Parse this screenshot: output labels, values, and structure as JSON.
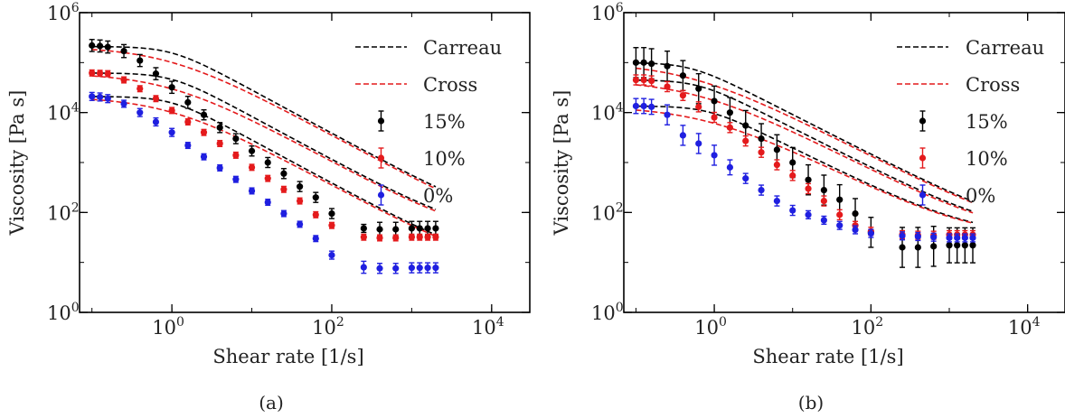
{
  "chart_data": [
    {
      "type": "scatter",
      "panel_label": "(a)",
      "xlabel": "Shear rate [1/s]",
      "ylabel": "Viscosity [Pa s]",
      "xscale": "log",
      "yscale": "log",
      "xlim": [
        0.07,
        30000
      ],
      "ylim": [
        1,
        1000000
      ],
      "xticks": [
        {
          "value": 1,
          "exp": "0"
        },
        {
          "value": 100,
          "exp": "2"
        },
        {
          "value": 10000,
          "exp": "4"
        }
      ],
      "yticks": [
        {
          "value": 1,
          "exp": "0"
        },
        {
          "value": 100,
          "exp": "2"
        },
        {
          "value": 10000,
          "exp": "4"
        },
        {
          "value": 1000000,
          "exp": "6"
        }
      ],
      "tick_base": "10",
      "legend_position": "top-right",
      "legend": [
        {
          "label": "Carreau",
          "kind": "line",
          "color": "#000000"
        },
        {
          "label": "Cross",
          "kind": "line",
          "color": "#e41a1c"
        },
        {
          "label": "15%",
          "kind": "marker",
          "color": "#000000"
        },
        {
          "label": "10%",
          "kind": "marker",
          "color": "#e41a1c"
        },
        {
          "label": "0%",
          "kind": "marker",
          "color": "#1f1fe0"
        }
      ],
      "series": [
        {
          "name": "15%",
          "color": "#000000",
          "x": [
            0.1,
            0.126,
            0.158,
            0.251,
            0.398,
            0.631,
            1,
            1.585,
            2.512,
            3.981,
            6.31,
            10,
            15.85,
            25.12,
            39.81,
            63.1,
            100,
            251.2,
            398.1,
            631,
            1000,
            1259,
            1585,
            1995
          ],
          "y": [
            220000,
            215000,
            205000,
            170000,
            110000,
            60000,
            32000,
            16000,
            9000,
            5000,
            3000,
            1700,
            1000,
            600,
            330,
            200,
            95,
            48,
            46,
            46,
            48,
            48,
            48,
            48
          ],
          "err": [
            0.12,
            0.12,
            0.12,
            0.13,
            0.12,
            0.12,
            0.12,
            0.12,
            0.1,
            0.1,
            0.1,
            0.1,
            0.1,
            0.1,
            0.1,
            0.1,
            0.1,
            0.08,
            0.14,
            0.14,
            0.14,
            0.14,
            0.14,
            0.14
          ]
        },
        {
          "name": "10%",
          "color": "#e41a1c",
          "x": [
            0.1,
            0.126,
            0.158,
            0.251,
            0.398,
            0.631,
            1,
            1.585,
            2.512,
            3.981,
            6.31,
            10,
            15.85,
            25.12,
            39.81,
            63.1,
            100,
            251.2,
            398.1,
            631,
            1000,
            1259,
            1585,
            1995
          ],
          "y": [
            62000,
            61000,
            60000,
            45000,
            30000,
            19000,
            11000,
            6500,
            4000,
            2400,
            1400,
            800,
            480,
            290,
            170,
            90,
            55,
            32,
            31,
            31,
            32,
            32,
            32,
            32
          ],
          "err": [
            0.06,
            0.06,
            0.06,
            0.06,
            0.06,
            0.06,
            0.06,
            0.06,
            0.06,
            0.06,
            0.06,
            0.06,
            0.06,
            0.06,
            0.06,
            0.06,
            0.06,
            0.06,
            0.06,
            0.06,
            0.06,
            0.06,
            0.06,
            0.06
          ]
        },
        {
          "name": "0%",
          "color": "#1f1fe0",
          "x": [
            0.1,
            0.126,
            0.158,
            0.251,
            0.398,
            0.631,
            1,
            1.585,
            2.512,
            3.981,
            6.31,
            10,
            15.85,
            25.12,
            39.81,
            63.1,
            100,
            251.2,
            398.1,
            631,
            1000,
            1259,
            1585,
            1995
          ],
          "y": [
            21000,
            20500,
            19000,
            15000,
            10000,
            6500,
            4000,
            2200,
            1300,
            780,
            460,
            270,
            160,
            95,
            58,
            30,
            14,
            8,
            7.6,
            7.6,
            7.8,
            7.8,
            7.8,
            7.8
          ],
          "err": [
            0.08,
            0.08,
            0.08,
            0.07,
            0.08,
            0.08,
            0.08,
            0.06,
            0.06,
            0.06,
            0.06,
            0.06,
            0.06,
            0.06,
            0.06,
            0.06,
            0.08,
            0.12,
            0.1,
            0.1,
            0.1,
            0.1,
            0.1,
            0.1
          ]
        }
      ],
      "fits": [
        {
          "model": "Carreau",
          "series": "15%",
          "eta0": 210000,
          "eta_inf": 45,
          "lambda": 1.0,
          "n": 0.13
        },
        {
          "model": "Cross",
          "series": "15%",
          "eta0": 210000,
          "eta_inf": 40,
          "lambda": 1.1,
          "n": 0.13
        },
        {
          "model": "Carreau",
          "series": "10%",
          "eta0": 62000,
          "eta_inf": 32,
          "lambda": 1.0,
          "n": 0.13
        },
        {
          "model": "Cross",
          "series": "10%",
          "eta0": 62000,
          "eta_inf": 30,
          "lambda": 1.1,
          "n": 0.13
        },
        {
          "model": "Carreau",
          "series": "0%",
          "eta0": 21000,
          "eta_inf": 7.5,
          "lambda": 1.0,
          "n": 0.13
        },
        {
          "model": "Cross",
          "series": "0%",
          "eta0": 21000,
          "eta_inf": 7.5,
          "lambda": 1.1,
          "n": 0.13
        }
      ]
    },
    {
      "type": "scatter",
      "panel_label": "(b)",
      "xlabel": "Shear rate [1/s]",
      "ylabel": "Viscosity [Pa s]",
      "xscale": "log",
      "yscale": "log",
      "xlim": [
        0.07,
        30000
      ],
      "ylim": [
        1,
        1000000
      ],
      "xticks": [
        {
          "value": 1,
          "exp": "0"
        },
        {
          "value": 100,
          "exp": "2"
        },
        {
          "value": 10000,
          "exp": "4"
        }
      ],
      "yticks": [
        {
          "value": 1,
          "exp": "0"
        },
        {
          "value": 100,
          "exp": "2"
        },
        {
          "value": 10000,
          "exp": "4"
        },
        {
          "value": 1000000,
          "exp": "6"
        }
      ],
      "tick_base": "10",
      "legend_position": "top-right",
      "legend": [
        {
          "label": "Carreau",
          "kind": "line",
          "color": "#000000"
        },
        {
          "label": "Cross",
          "kind": "line",
          "color": "#e41a1c"
        },
        {
          "label": "15%",
          "kind": "marker",
          "color": "#000000"
        },
        {
          "label": "10%",
          "kind": "marker",
          "color": "#e41a1c"
        },
        {
          "label": "0%",
          "kind": "marker",
          "color": "#1f1fe0"
        }
      ],
      "series": [
        {
          "name": "15%",
          "color": "#000000",
          "x": [
            0.1,
            0.126,
            0.158,
            0.251,
            0.398,
            0.631,
            1,
            1.585,
            2.512,
            3.981,
            6.31,
            10,
            15.85,
            25.12,
            39.81,
            63.1,
            100,
            251.2,
            398.1,
            631,
            1000,
            1259,
            1585,
            1995
          ],
          "y": [
            100000,
            100000,
            95000,
            85000,
            55000,
            30000,
            17000,
            10000,
            5500,
            3000,
            1800,
            1000,
            450,
            280,
            180,
            95,
            40,
            20,
            20,
            21,
            22,
            22,
            22,
            22
          ],
          "err": [
            0.3,
            0.3,
            0.3,
            0.3,
            0.3,
            0.3,
            0.3,
            0.3,
            0.3,
            0.3,
            0.3,
            0.3,
            0.3,
            0.3,
            0.3,
            0.3,
            0.3,
            0.4,
            0.4,
            0.4,
            0.35,
            0.35,
            0.35,
            0.35
          ]
        },
        {
          "name": "10%",
          "color": "#e41a1c",
          "x": [
            0.1,
            0.126,
            0.158,
            0.251,
            0.398,
            0.631,
            1,
            1.585,
            2.512,
            3.981,
            6.31,
            10,
            15.85,
            25.12,
            39.81,
            63.1,
            100,
            251.2,
            398.1,
            631,
            1000,
            1259,
            1585,
            1995
          ],
          "y": [
            45000,
            45000,
            43000,
            33000,
            22000,
            13000,
            8000,
            5000,
            2700,
            1600,
            900,
            550,
            300,
            170,
            90,
            55,
            42,
            36,
            35,
            35,
            36,
            36,
            36,
            36
          ],
          "err": [
            0.1,
            0.1,
            0.1,
            0.1,
            0.1,
            0.1,
            0.1,
            0.1,
            0.1,
            0.1,
            0.1,
            0.1,
            0.1,
            0.1,
            0.1,
            0.08,
            0.08,
            0.08,
            0.08,
            0.08,
            0.08,
            0.08,
            0.08,
            0.08
          ]
        },
        {
          "name": "0%",
          "color": "#1f1fe0",
          "x": [
            0.1,
            0.126,
            0.158,
            0.251,
            0.398,
            0.631,
            1,
            1.585,
            2.512,
            3.981,
            6.31,
            10,
            15.85,
            25.12,
            39.81,
            63.1,
            100,
            251.2,
            398.1,
            631,
            1000,
            1259,
            1585,
            1995
          ],
          "y": [
            13500,
            13500,
            13000,
            9000,
            3500,
            2400,
            1400,
            800,
            480,
            280,
            170,
            110,
            90,
            70,
            55,
            45,
            38,
            34,
            33,
            32,
            31,
            31,
            31,
            31
          ],
          "err": [
            0.15,
            0.15,
            0.15,
            0.2,
            0.2,
            0.2,
            0.2,
            0.15,
            0.1,
            0.1,
            0.1,
            0.1,
            0.08,
            0.08,
            0.08,
            0.08,
            0.08,
            0.08,
            0.08,
            0.08,
            0.08,
            0.08,
            0.08,
            0.08
          ]
        }
      ],
      "fits": [
        {
          "model": "Carreau",
          "series": "15%",
          "eta0": 100000,
          "eta_inf": 35,
          "lambda": 2.0,
          "n": 0.2
        },
        {
          "model": "Cross",
          "series": "15%",
          "eta0": 100000,
          "eta_inf": 35,
          "lambda": 2.2,
          "n": 0.2
        },
        {
          "model": "Carreau",
          "series": "10%",
          "eta0": 45000,
          "eta_inf": 34,
          "lambda": 1.6,
          "n": 0.2
        },
        {
          "model": "Cross",
          "series": "10%",
          "eta0": 45000,
          "eta_inf": 34,
          "lambda": 1.8,
          "n": 0.2
        },
        {
          "model": "Carreau",
          "series": "0%",
          "eta0": 13500,
          "eta_inf": 32,
          "lambda": 1.2,
          "n": 0.22
        },
        {
          "model": "Cross",
          "series": "0%",
          "eta0": 13500,
          "eta_inf": 32,
          "lambda": 1.3,
          "n": 0.22
        }
      ]
    }
  ]
}
